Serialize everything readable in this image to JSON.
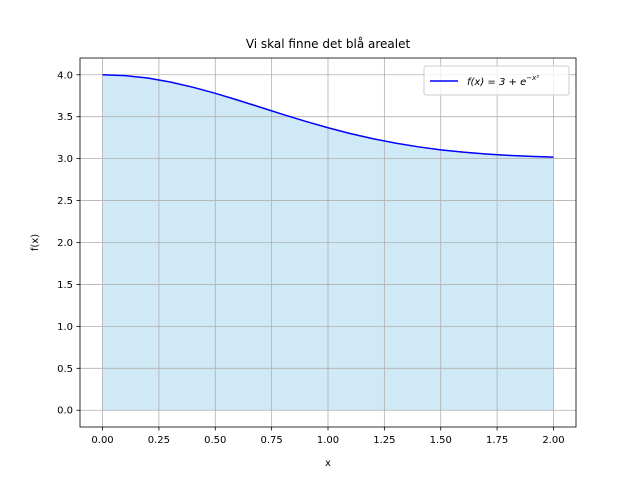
{
  "chart_data": {
    "type": "area",
    "title": "Vi skal finne det blå arealet",
    "xlabel": "x",
    "ylabel": "f(x)",
    "xlim": [
      -0.1,
      2.1
    ],
    "ylim": [
      -0.2,
      4.2
    ],
    "xticks": [
      "0.00",
      "0.25",
      "0.50",
      "0.75",
      "1.00",
      "1.25",
      "1.50",
      "1.75",
      "2.00"
    ],
    "yticks": [
      "0.0",
      "0.5",
      "1.0",
      "1.5",
      "2.0",
      "2.5",
      "3.0",
      "3.5",
      "4.0"
    ],
    "grid": true,
    "legend_position": "upper right",
    "series": [
      {
        "name": "f(x) = 3 + e^{-x²}",
        "color": "#0000ff",
        "fill_color": "#cfe9f6",
        "x": [
          0.0,
          0.1,
          0.2,
          0.3,
          0.4,
          0.5,
          0.6,
          0.7,
          0.8,
          0.9,
          1.0,
          1.1,
          1.2,
          1.3,
          1.4,
          1.5,
          1.6,
          1.7,
          1.8,
          1.9,
          2.0
        ],
        "y": [
          4.0,
          3.99,
          3.961,
          3.914,
          3.852,
          3.779,
          3.698,
          3.613,
          3.527,
          3.445,
          3.368,
          3.298,
          3.237,
          3.185,
          3.141,
          3.105,
          3.077,
          3.056,
          3.039,
          3.027,
          3.018
        ]
      }
    ],
    "legend": {
      "entries": [
        {
          "prefix": "f(x) = 3 + e",
          "exponent": "−x²"
        }
      ]
    }
  }
}
